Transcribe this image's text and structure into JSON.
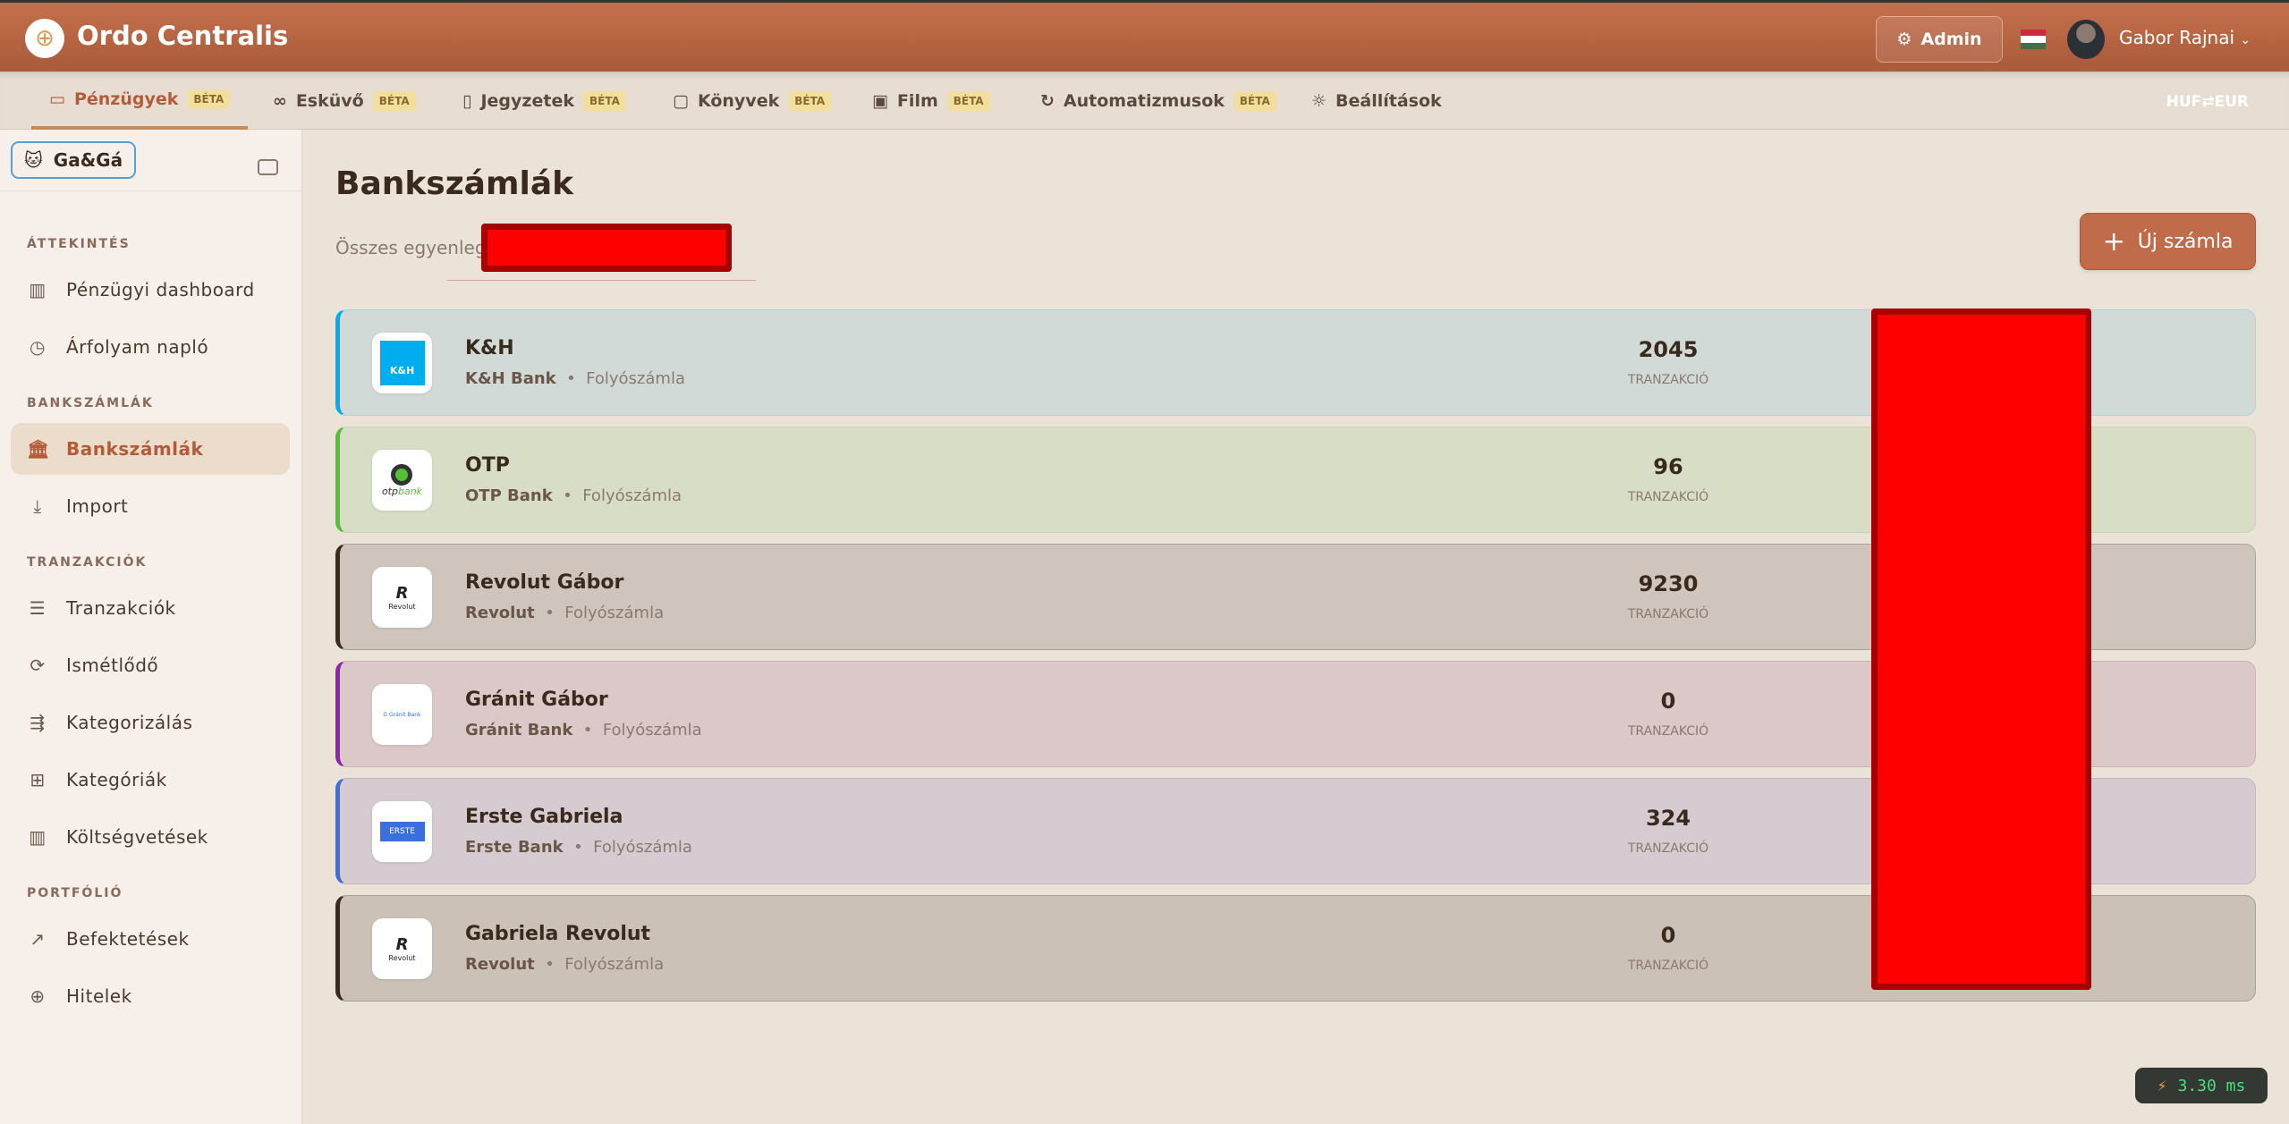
{
  "header": {
    "app_title": "Ordo Centralis",
    "admin_label": "Admin",
    "user_name": "Gabor Rajnai",
    "flag_colors": [
      "#cd2a3e",
      "#ffffff",
      "#436f4d"
    ]
  },
  "nav": {
    "tabs": [
      {
        "label": "Pénzügyek",
        "badge": "BÉTA",
        "icon": "credit-card-icon",
        "active": true
      },
      {
        "label": "Esküvő",
        "badge": "BÉTA",
        "icon": "rings-icon"
      },
      {
        "label": "Jegyzetek",
        "badge": "BÉTA",
        "icon": "notes-icon"
      },
      {
        "label": "Könyvek",
        "badge": "BÉTA",
        "icon": "book-icon"
      },
      {
        "label": "Film",
        "badge": "BÉTA",
        "icon": "film-icon"
      },
      {
        "label": "Automatizmusok",
        "badge": "BÉTA",
        "icon": "refresh-icon"
      },
      {
        "label": "Beállítások",
        "icon": "sun-icon"
      }
    ],
    "currency_toggle": "HUF⇄EUR"
  },
  "sidebar": {
    "org": "Ga&Gá",
    "sections": [
      {
        "title": "ÁTTEKINTÉS",
        "items": [
          {
            "label": "Pénzügyi dashboard",
            "icon": "bar-chart-icon"
          },
          {
            "label": "Árfolyam napló",
            "icon": "clock-icon"
          }
        ]
      },
      {
        "title": "BANKSZÁMLÁK",
        "items": [
          {
            "label": "Bankszámlák",
            "icon": "bank-icon",
            "active": true
          },
          {
            "label": "Import",
            "icon": "download-icon"
          }
        ]
      },
      {
        "title": "TRANZAKCIÓK",
        "items": [
          {
            "label": "Tranzakciók",
            "icon": "list-icon"
          },
          {
            "label": "Ismétlődő",
            "icon": "repeat-icon"
          },
          {
            "label": "Kategorizálás",
            "icon": "categorize-icon"
          },
          {
            "label": "Kategóriák",
            "icon": "grid-icon"
          },
          {
            "label": "Költségvetések",
            "icon": "bar-chart-icon"
          }
        ]
      },
      {
        "title": "PORTFÓLIÓ",
        "items": [
          {
            "label": "Befektetések",
            "icon": "trending-up-icon"
          },
          {
            "label": "Hitelek",
            "icon": "loan-icon"
          }
        ]
      }
    ]
  },
  "main": {
    "title": "Bankszámlák",
    "total_label": "Összes egyenleg",
    "new_button": "Új számla",
    "count_label": "TRANZAKCIÓ",
    "accounts": [
      {
        "name": "K&H",
        "bank": "K&H Bank",
        "type": "Folyószámla",
        "transactions": "2045",
        "accent": "#00aeef",
        "bg": "#d2dad7",
        "border": "#a9d4ea",
        "logo": "K&H"
      },
      {
        "name": "OTP",
        "bank": "OTP Bank",
        "type": "Folyószámla",
        "transactions": "96",
        "accent": "#52c234",
        "bg": "#d8ddc5",
        "border": "#c2d8ad",
        "logo": "otpbank"
      },
      {
        "name": "Revolut Gábor",
        "bank": "Revolut",
        "type": "Folyószámla",
        "transactions": "9230",
        "accent": "#3a2a20",
        "bg": "#cfc5bc",
        "border": "#b0a298",
        "logo": "Revolut"
      },
      {
        "name": "Gránit Gábor",
        "bank": "Gránit Bank",
        "type": "Folyószámla",
        "transactions": "0",
        "accent": "#8e24aa",
        "bg": "#dbc8c8",
        "border": "#cfaebd",
        "logo": "Gránit Bank"
      },
      {
        "name": "Erste Gabriela",
        "bank": "Erste Bank",
        "type": "Folyószámla",
        "transactions": "324",
        "accent": "#3b6fe0",
        "bg": "#d5cbd0",
        "border": "#c0b6c4",
        "logo": "ERSTE"
      },
      {
        "name": "Gabriela Revolut",
        "bank": "Revolut",
        "type": "Folyószámla",
        "transactions": "0",
        "accent": "#3a2a20",
        "bg": "#cbc1b6",
        "border": "#ab9e94",
        "logo": "Revolut"
      }
    ]
  },
  "perf": {
    "value": "3.30 ms"
  }
}
